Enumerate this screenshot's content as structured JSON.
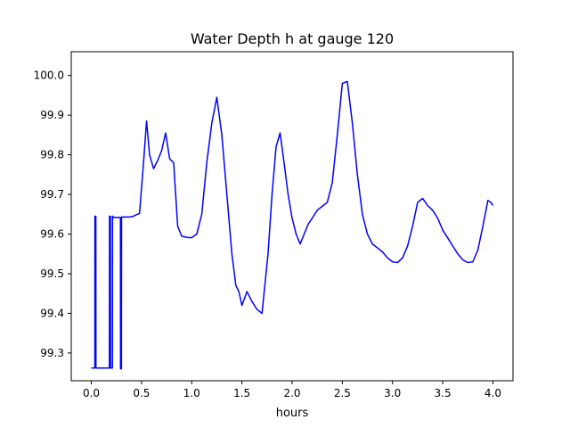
{
  "chart_data": {
    "type": "line",
    "title": "Water Depth h at gauge 120",
    "xlabel": "hours",
    "ylabel": "",
    "xlim": [
      -0.2,
      4.2
    ],
    "ylim": [
      99.23,
      100.06
    ],
    "xticks": [
      0.0,
      0.5,
      1.0,
      1.5,
      2.0,
      2.5,
      3.0,
      3.5,
      4.0
    ],
    "xtick_labels": [
      "0.0",
      "0.5",
      "1.0",
      "1.5",
      "2.0",
      "2.5",
      "3.0",
      "3.5",
      "4.0"
    ],
    "yticks": [
      99.3,
      99.4,
      99.5,
      99.6,
      99.7,
      99.8,
      99.9,
      100.0
    ],
    "ytick_labels": [
      "99.3",
      "99.4",
      "99.5",
      "99.6",
      "99.7",
      "99.8",
      "99.9",
      "100.0"
    ],
    "grid": false,
    "series": [
      {
        "color": "#0000ff",
        "x": [
          0.0,
          0.035,
          0.036,
          0.045,
          0.046,
          0.18,
          0.181,
          0.19,
          0.191,
          0.21,
          0.211,
          0.215,
          0.216,
          0.29,
          0.291,
          0.3,
          0.301,
          0.38,
          0.42,
          0.44,
          0.48,
          0.52,
          0.55,
          0.58,
          0.62,
          0.66,
          0.7,
          0.74,
          0.78,
          0.82,
          0.86,
          0.9,
          0.93,
          0.97,
          1.0,
          1.05,
          1.1,
          1.15,
          1.2,
          1.25,
          1.3,
          1.35,
          1.4,
          1.44,
          1.47,
          1.5,
          1.55,
          1.6,
          1.65,
          1.7,
          1.72,
          1.76,
          1.8,
          1.84,
          1.88,
          1.92,
          1.96,
          2.0,
          2.04,
          2.08,
          2.12,
          2.16,
          2.2,
          2.25,
          2.3,
          2.35,
          2.4,
          2.45,
          2.5,
          2.55,
          2.6,
          2.65,
          2.7,
          2.75,
          2.8,
          2.85,
          2.9,
          2.95,
          3.0,
          3.05,
          3.1,
          3.15,
          3.2,
          3.25,
          3.3,
          3.35,
          3.4,
          3.45,
          3.5,
          3.55,
          3.6,
          3.65,
          3.7,
          3.75,
          3.8,
          3.85,
          3.9,
          3.95,
          3.98,
          4.0
        ],
        "y": [
          99.262,
          99.262,
          99.645,
          99.645,
          99.262,
          99.262,
          99.645,
          99.645,
          99.262,
          99.262,
          99.645,
          99.645,
          99.642,
          99.642,
          99.26,
          99.26,
          99.643,
          99.643,
          99.645,
          99.648,
          99.652,
          99.78,
          99.885,
          99.8,
          99.765,
          99.785,
          99.81,
          99.855,
          99.79,
          99.78,
          99.62,
          99.595,
          99.593,
          99.591,
          99.591,
          99.6,
          99.65,
          99.78,
          99.88,
          99.945,
          99.85,
          99.7,
          99.55,
          99.47,
          99.455,
          99.42,
          99.455,
          99.43,
          99.41,
          99.4,
          99.45,
          99.55,
          99.7,
          99.82,
          99.855,
          99.78,
          99.7,
          99.64,
          99.6,
          99.575,
          99.6,
          99.625,
          99.64,
          99.66,
          99.67,
          99.68,
          99.73,
          99.85,
          99.98,
          99.985,
          99.88,
          99.75,
          99.65,
          99.6,
          99.575,
          99.565,
          99.555,
          99.54,
          99.53,
          99.528,
          99.54,
          99.57,
          99.62,
          99.68,
          99.69,
          99.672,
          99.66,
          99.64,
          99.61,
          99.59,
          99.57,
          99.55,
          99.535,
          99.528,
          99.53,
          99.56,
          99.62,
          99.685,
          99.68,
          99.672
        ]
      }
    ]
  }
}
